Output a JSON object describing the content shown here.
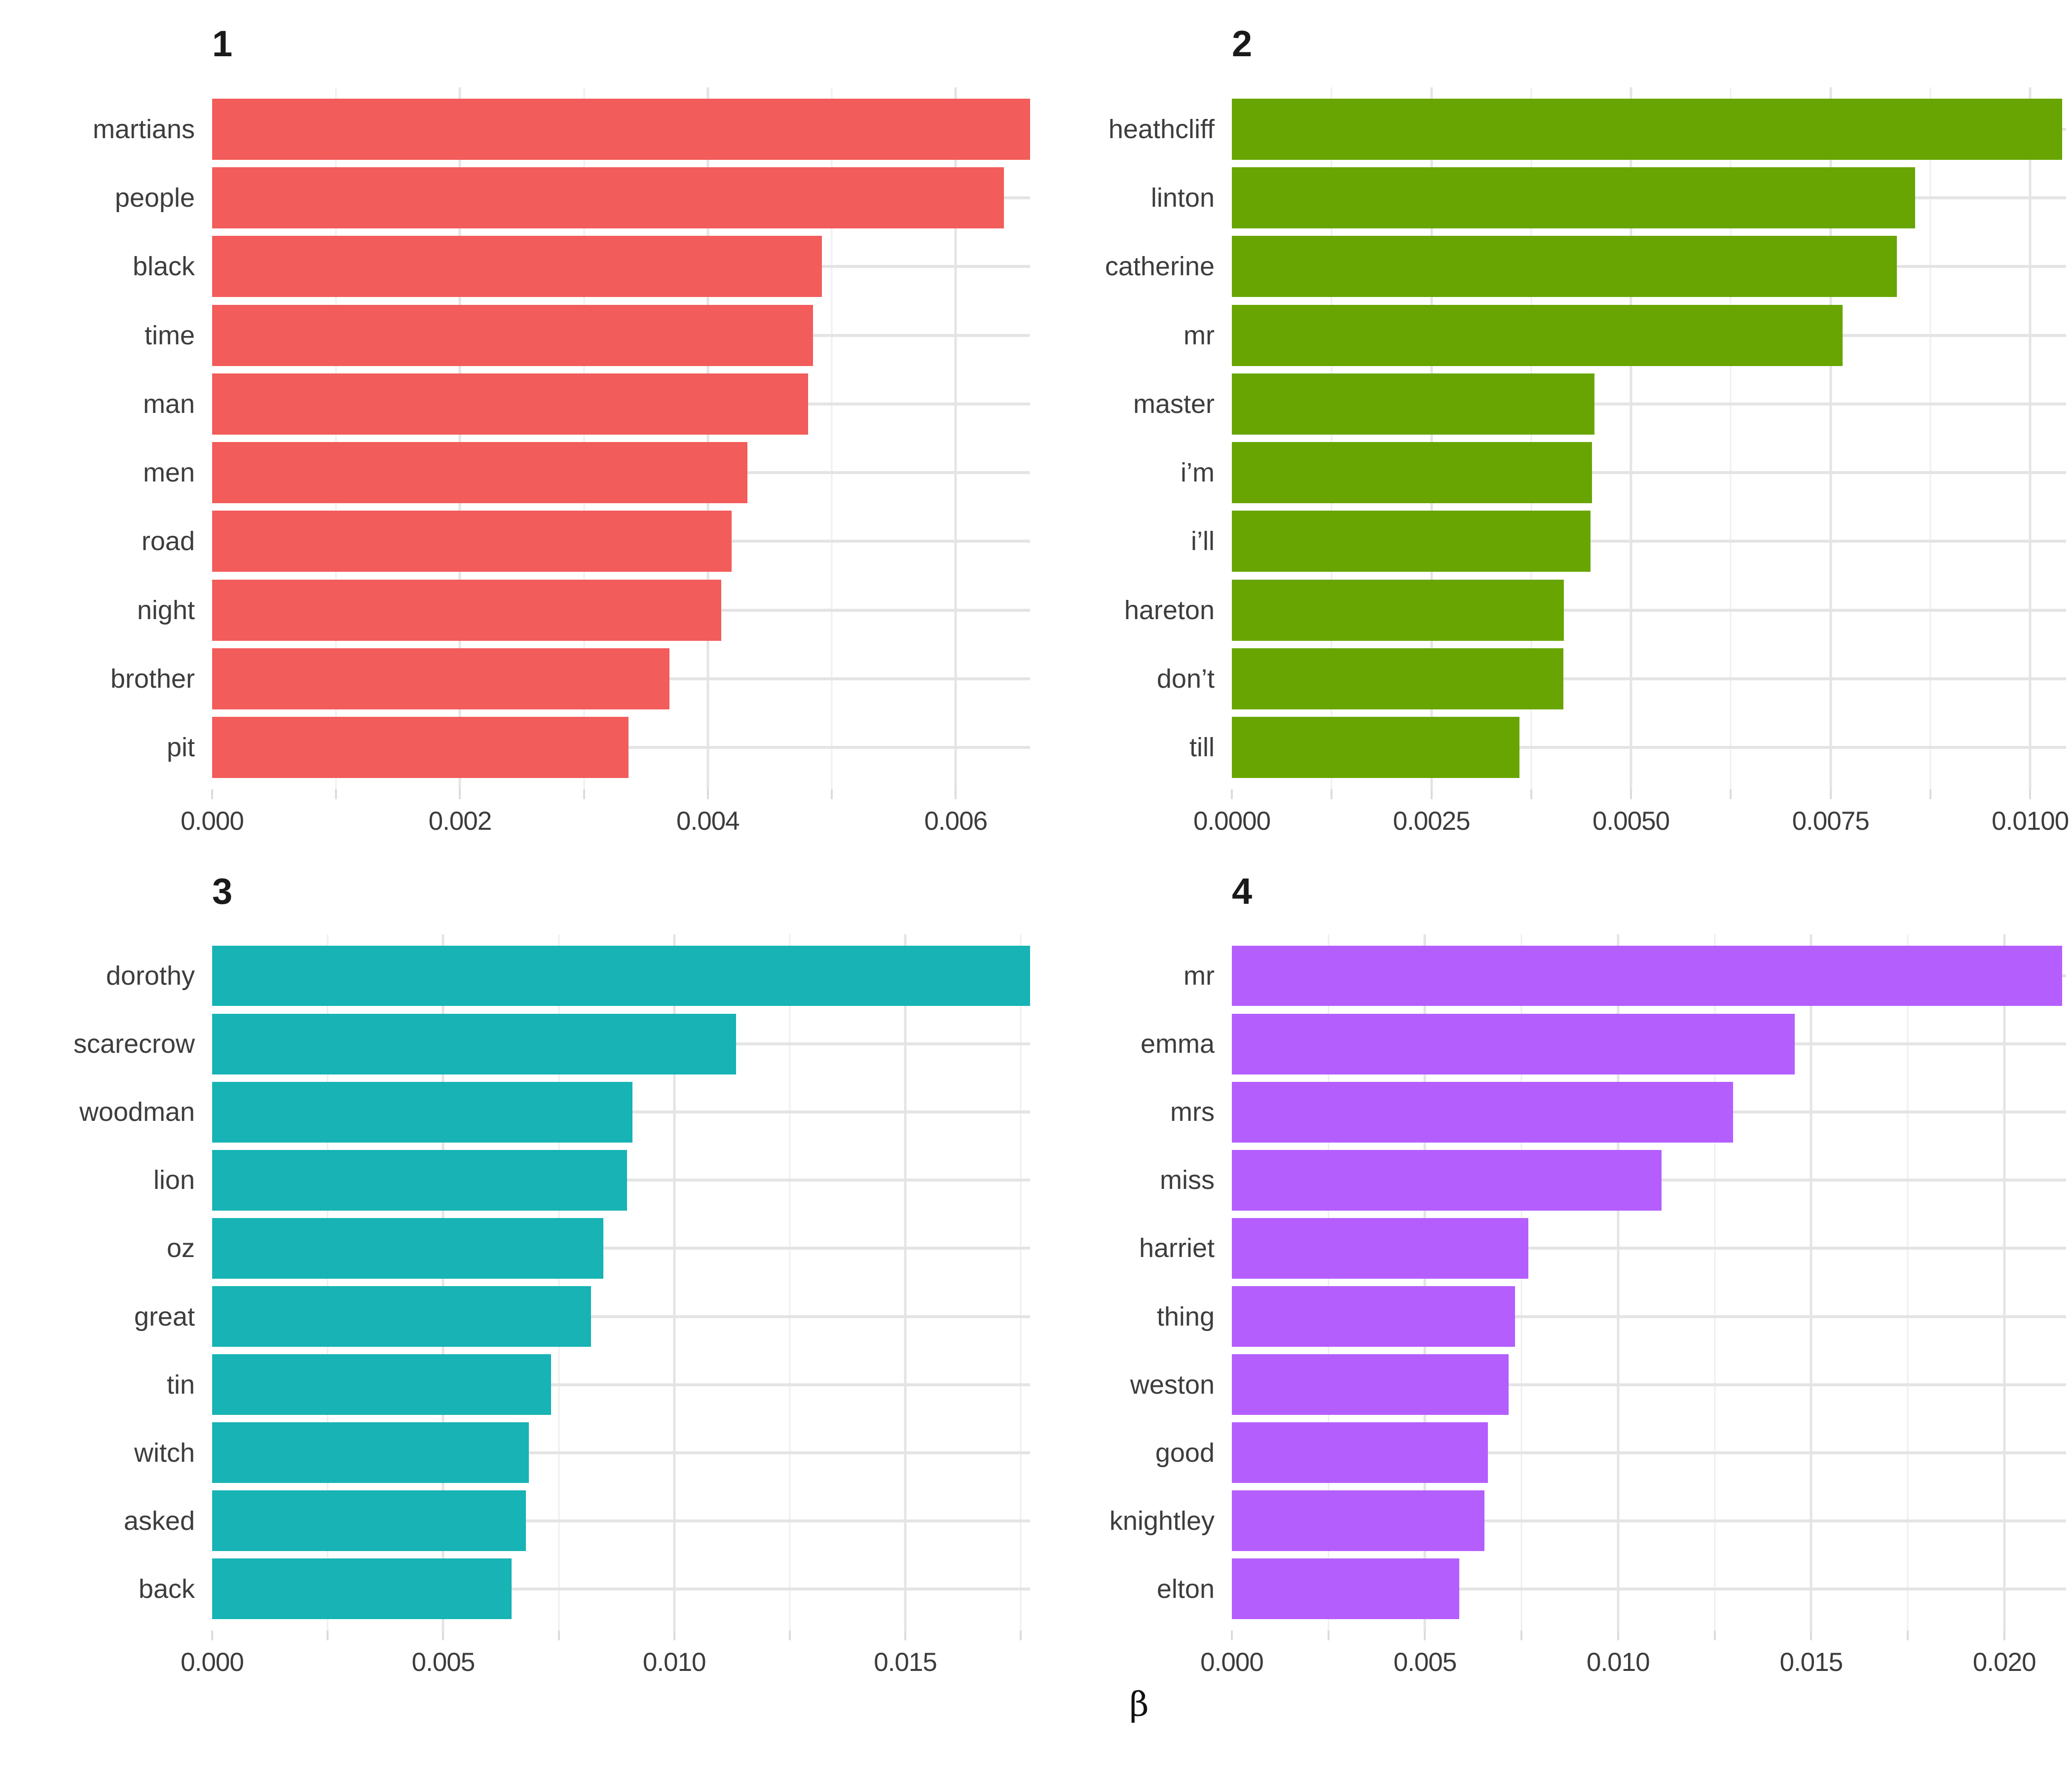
{
  "figure": {
    "background": "#ffffff",
    "axis_title": "β",
    "text_color": "#3d3d3d",
    "gridline_major_color": "#e4e4e4",
    "gridline_minor_color": "#efefef",
    "tick_mark_color": "#dcdcdc"
  },
  "chart_data": [
    {
      "type": "bar",
      "orientation": "horizontal",
      "facet_label": "1",
      "color": "#F25C5A",
      "categories": [
        "martians",
        "people",
        "black",
        "time",
        "man",
        "men",
        "road",
        "night",
        "brother",
        "pit"
      ],
      "values": [
        0.0066,
        0.00639,
        0.00492,
        0.00485,
        0.00481,
        0.00432,
        0.00419,
        0.00411,
        0.00369,
        0.00336
      ],
      "xlabel": "β",
      "xlim": [
        0,
        0.0066
      ],
      "minor_step": 0.001,
      "ticks": [
        {
          "value": 0,
          "label": "0.000"
        },
        {
          "value": 0.002,
          "label": "0.002"
        },
        {
          "value": 0.004,
          "label": "0.004"
        },
        {
          "value": 0.006,
          "label": "0.006"
        }
      ],
      "grid": "on",
      "legend": "none"
    },
    {
      "type": "bar",
      "orientation": "horizontal",
      "facet_label": "2",
      "color": "#68A502",
      "categories": [
        "heathcliff",
        "linton",
        "catherine",
        "mr",
        "master",
        "i’m",
        "i’ll",
        "hareton",
        "don’t",
        "till"
      ],
      "values": [
        0.0104,
        0.00856,
        0.00833,
        0.00765,
        0.00454,
        0.00451,
        0.00449,
        0.00416,
        0.00415,
        0.0036
      ],
      "xlabel": "β",
      "xlim": [
        0,
        0.01045
      ],
      "minor_step": 0.00125,
      "ticks": [
        {
          "value": 0,
          "label": "0.0000"
        },
        {
          "value": 0.0025,
          "label": "0.0025"
        },
        {
          "value": 0.005,
          "label": "0.0050"
        },
        {
          "value": 0.0075,
          "label": "0.0075"
        },
        {
          "value": 0.01,
          "label": "0.0100"
        }
      ],
      "grid": "on",
      "legend": "none"
    },
    {
      "type": "bar",
      "orientation": "horizontal",
      "facet_label": "3",
      "color": "#17B3B5",
      "categories": [
        "dorothy",
        "scarecrow",
        "woodman",
        "lion",
        "oz",
        "great",
        "tin",
        "witch",
        "asked",
        "back"
      ],
      "values": [
        0.0177,
        0.01134,
        0.0091,
        0.00898,
        0.00847,
        0.0082,
        0.00733,
        0.00685,
        0.00679,
        0.00648
      ],
      "xlabel": "β",
      "xlim": [
        0,
        0.0177
      ],
      "minor_step": 0.0025,
      "ticks": [
        {
          "value": 0,
          "label": "0.000"
        },
        {
          "value": 0.005,
          "label": "0.005"
        },
        {
          "value": 0.01,
          "label": "0.010"
        },
        {
          "value": 0.015,
          "label": "0.015"
        }
      ],
      "grid": "on",
      "legend": "none"
    },
    {
      "type": "bar",
      "orientation": "horizontal",
      "facet_label": "4",
      "color": "#B55EFE",
      "categories": [
        "mr",
        "emma",
        "mrs",
        "miss",
        "harriet",
        "thing",
        "weston",
        "good",
        "knightley",
        "elton"
      ],
      "values": [
        0.0215,
        0.01458,
        0.01298,
        0.01113,
        0.00768,
        0.00733,
        0.00716,
        0.00663,
        0.00654,
        0.00589
      ],
      "xlabel": "β",
      "xlim": [
        0,
        0.0216
      ],
      "minor_step": 0.0025,
      "ticks": [
        {
          "value": 0,
          "label": "0.000"
        },
        {
          "value": 0.005,
          "label": "0.005"
        },
        {
          "value": 0.01,
          "label": "0.010"
        },
        {
          "value": 0.015,
          "label": "0.015"
        },
        {
          "value": 0.02,
          "label": "0.020"
        }
      ],
      "grid": "on",
      "legend": "none"
    }
  ]
}
